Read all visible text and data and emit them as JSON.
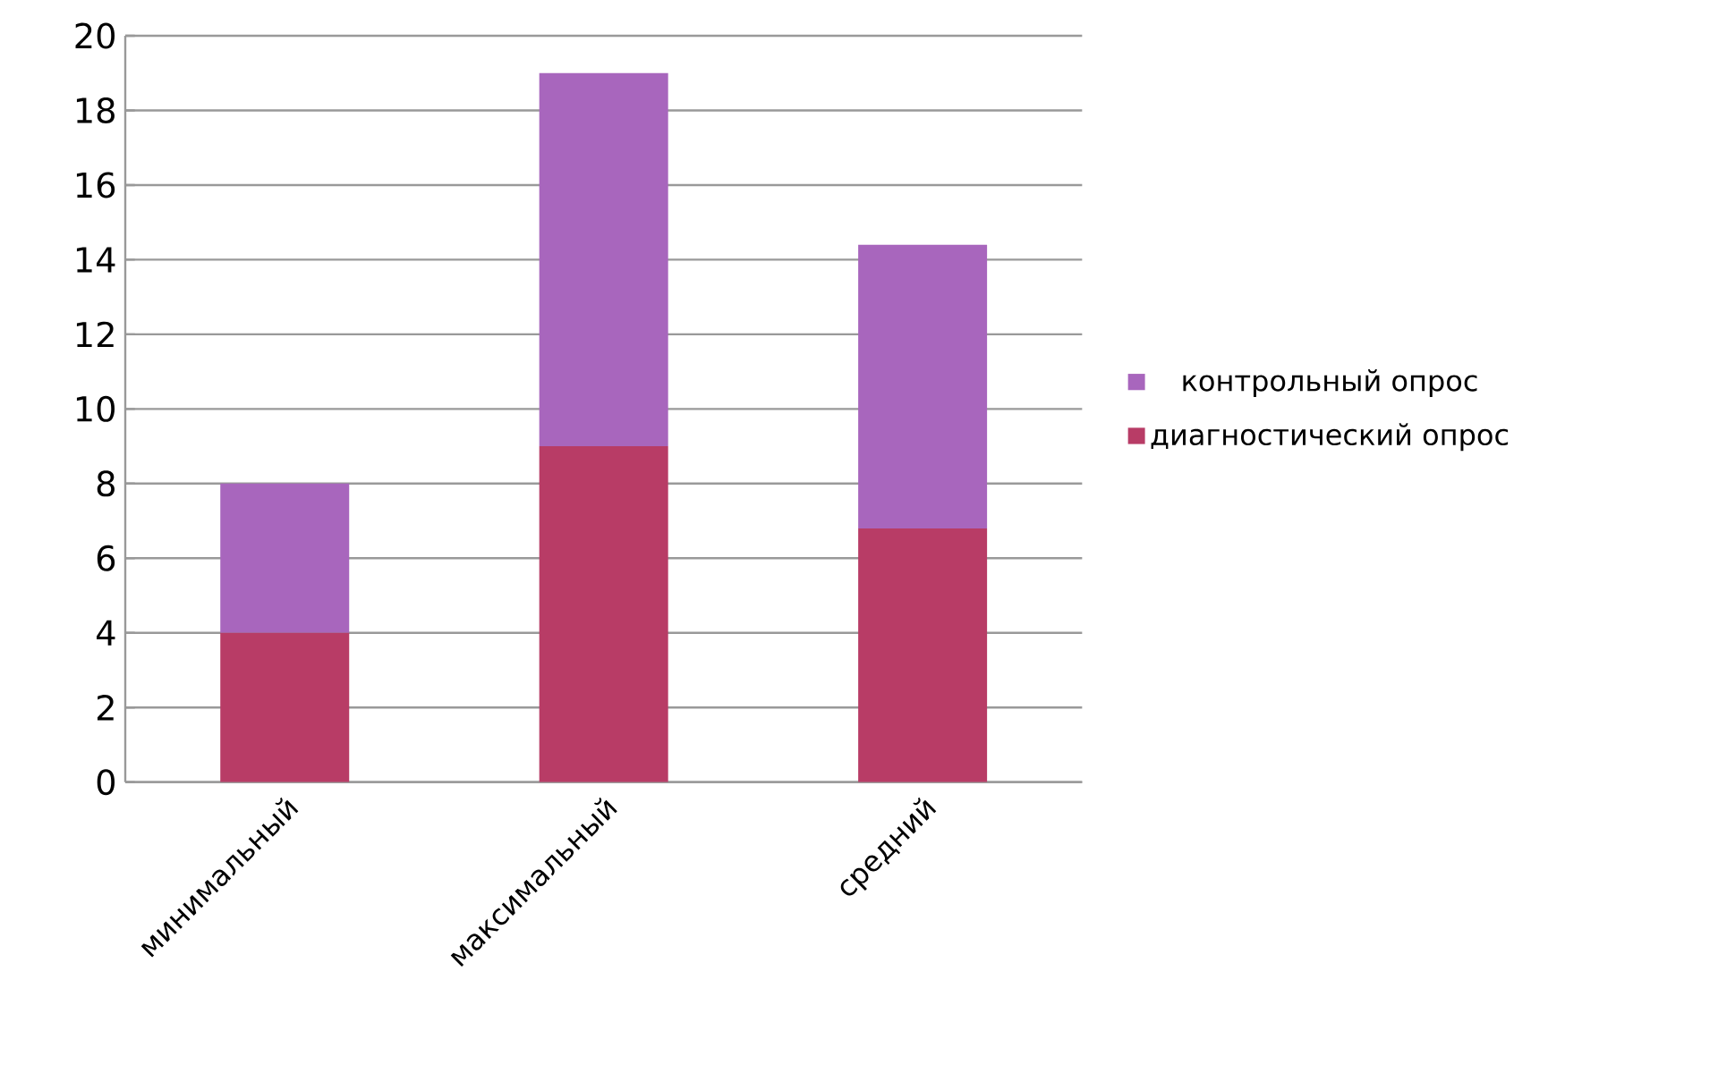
{
  "chart_data": {
    "type": "bar",
    "stacked": true,
    "categories": [
      "минимальный",
      "максимальный",
      "средний"
    ],
    "series": [
      {
        "name": "диагностический опрос",
        "color": "#b83c66",
        "values": [
          4,
          9,
          6.8
        ]
      },
      {
        "name": "контрольный опрос",
        "color": "#a866bd",
        "values": [
          4,
          10,
          7.6
        ]
      }
    ],
    "ylim": [
      0,
      20
    ],
    "yticks": [
      0,
      2,
      4,
      6,
      8,
      10,
      12,
      14,
      16,
      18,
      20
    ],
    "grid": "y",
    "legend": "right"
  }
}
